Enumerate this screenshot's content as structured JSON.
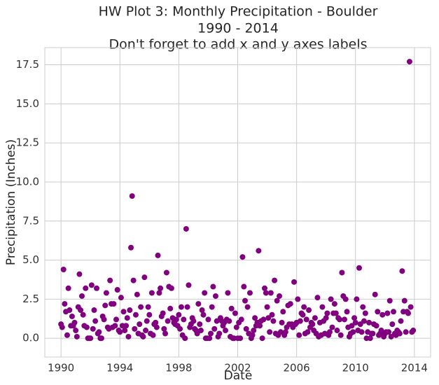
{
  "chart_data": {
    "type": "scatter",
    "title": [
      "HW Plot 3: Monthly Precipitation - Boulder",
      "1990 - 2014",
      "Don't forget to add x and y axes labels"
    ],
    "x_label": "Date",
    "y_label": "Precipitation (Inches)",
    "color": "#800080",
    "grid": true,
    "xlim": [
      1988.9,
      2015.1
    ],
    "ylim": [
      -1.2,
      18.6
    ],
    "xticks": [
      1990,
      1994,
      1998,
      2002,
      2006,
      2010,
      2014
    ],
    "yticks": [
      {
        "value": 0,
        "label": "0.0"
      },
      2.5,
      {
        "value": 5,
        "label": "5.0"
      },
      7.5,
      {
        "value": 10,
        "label": "10.0"
      },
      12.5,
      {
        "value": 15,
        "label": "15.0"
      },
      17.5
    ],
    "x": [
      1990,
      1990.08,
      1990.17,
      1990.25,
      1990.33,
      1990.42,
      1990.5,
      1990.58,
      1990.67,
      1990.75,
      1990.83,
      1990.92,
      1991,
      1991.08,
      1991.17,
      1991.25,
      1991.33,
      1991.42,
      1991.5,
      1991.58,
      1991.67,
      1991.75,
      1991.83,
      1991.92,
      1992,
      1992.08,
      1992.17,
      1992.25,
      1992.33,
      1992.42,
      1992.5,
      1992.58,
      1992.67,
      1992.75,
      1992.83,
      1992.92,
      1993,
      1993.08,
      1993.17,
      1993.25,
      1993.33,
      1993.42,
      1993.5,
      1993.58,
      1993.67,
      1993.75,
      1993.83,
      1993.92,
      1994,
      1994.08,
      1994.17,
      1994.25,
      1994.33,
      1994.42,
      1994.5,
      1994.58,
      1994.67,
      1994.75,
      1994.83,
      1994.92,
      1995,
      1995.08,
      1995.17,
      1995.25,
      1995.33,
      1995.42,
      1995.5,
      1995.58,
      1995.67,
      1995.75,
      1995.83,
      1995.92,
      1996,
      1996.08,
      1996.17,
      1996.25,
      1996.33,
      1996.42,
      1996.5,
      1996.58,
      1996.67,
      1996.75,
      1996.83,
      1996.92,
      1997,
      1997.08,
      1997.17,
      1997.25,
      1997.33,
      1997.42,
      1997.5,
      1997.58,
      1997.67,
      1997.75,
      1997.83,
      1997.92,
      1998,
      1998.08,
      1998.17,
      1998.25,
      1998.33,
      1998.42,
      1998.5,
      1998.58,
      1998.67,
      1998.75,
      1998.83,
      1998.92,
      1999,
      1999.08,
      1999.17,
      1999.25,
      1999.33,
      1999.42,
      1999.5,
      1999.58,
      1999.67,
      1999.75,
      1999.83,
      1999.92,
      2000,
      2000.08,
      2000.17,
      2000.25,
      2000.33,
      2000.42,
      2000.5,
      2000.58,
      2000.67,
      2000.75,
      2000.83,
      2000.92,
      2001,
      2001.08,
      2001.17,
      2001.25,
      2001.33,
      2001.42,
      2001.5,
      2001.58,
      2001.67,
      2001.75,
      2001.83,
      2001.92,
      2002,
      2002.08,
      2002.17,
      2002.25,
      2002.33,
      2002.42,
      2002.5,
      2002.58,
      2002.67,
      2002.75,
      2002.83,
      2002.92,
      2003,
      2003.08,
      2003.17,
      2003.25,
      2003.33,
      2003.42,
      2003.5,
      2003.58,
      2003.67,
      2003.75,
      2003.83,
      2003.92,
      2004,
      2004.08,
      2004.17,
      2004.25,
      2004.33,
      2004.42,
      2004.5,
      2004.58,
      2004.67,
      2004.75,
      2004.83,
      2004.92,
      2005,
      2005.08,
      2005.17,
      2005.25,
      2005.33,
      2005.42,
      2005.5,
      2005.58,
      2005.67,
      2005.75,
      2005.83,
      2005.92,
      2006,
      2006.08,
      2006.17,
      2006.25,
      2006.33,
      2006.42,
      2006.5,
      2006.58,
      2006.67,
      2006.75,
      2006.83,
      2006.92,
      2007,
      2007.08,
      2007.17,
      2007.25,
      2007.33,
      2007.42,
      2007.5,
      2007.58,
      2007.67,
      2007.75,
      2007.83,
      2007.92,
      2008,
      2008.08,
      2008.17,
      2008.25,
      2008.33,
      2008.42,
      2008.5,
      2008.58,
      2008.67,
      2008.75,
      2008.83,
      2008.92,
      2009,
      2009.08,
      2009.17,
      2009.25,
      2009.33,
      2009.42,
      2009.5,
      2009.58,
      2009.67,
      2009.75,
      2009.83,
      2009.92,
      2010,
      2010.08,
      2010.17,
      2010.25,
      2010.33,
      2010.42,
      2010.5,
      2010.58,
      2010.67,
      2010.75,
      2010.83,
      2010.92,
      2011,
      2011.08,
      2011.17,
      2011.25,
      2011.33,
      2011.42,
      2011.5,
      2011.58,
      2011.67,
      2011.75,
      2011.83,
      2011.92,
      2012,
      2012.08,
      2012.17,
      2012.25,
      2012.33,
      2012.42,
      2012.5,
      2012.58,
      2012.67,
      2012.75,
      2012.83,
      2012.92,
      2013,
      2013.08,
      2013.17,
      2013.25,
      2013.33,
      2013.42,
      2013.5,
      2013.58,
      2013.67,
      2013.75,
      2013.83,
      2013.92
    ],
    "values": [
      0.9,
      0.7,
      4.4,
      2.2,
      1.7,
      0.2,
      3.2,
      1.8,
      0.8,
      1.4,
      0.8,
      1.0,
      0.5,
      0.1,
      2.0,
      4.1,
      1.8,
      2.7,
      1.5,
      0.8,
      3.2,
      0.7,
      0.0,
      0.0,
      0.0,
      3.4,
      0.6,
      1.8,
      1.1,
      3.2,
      0.3,
      0.4,
      0.0,
      0.0,
      1.4,
      1.2,
      2.1,
      2.9,
      0.7,
      0.6,
      3.7,
      2.2,
      0.7,
      2.2,
      0.8,
      1.2,
      3.1,
      0.5,
      0.4,
      2.6,
      0.8,
      1.7,
      0.5,
      0.8,
      1.3,
      0.1,
      1.8,
      5.8,
      9.1,
      3.7,
      0.6,
      1.5,
      2.8,
      0.3,
      0.9,
      2.0,
      0.2,
      0.1,
      3.9,
      0.5,
      1.1,
      2.0,
      1.5,
      0.3,
      2.9,
      0.2,
      0.9,
      1.0,
      0.7,
      5.3,
      2.9,
      3.2,
      1.4,
      1.6,
      0.6,
      0.3,
      4.2,
      1.1,
      3.3,
      1.9,
      3.2,
      1.3,
      1.0,
      0.9,
      1.2,
      0.8,
      1.5,
      0.6,
      2.0,
      0.2,
      1.2,
      0.0,
      7.0,
      2.0,
      3.4,
      0.7,
      0.9,
      1.3,
      1.1,
      0.6,
      0.5,
      0.3,
      2.2,
      0.9,
      0.5,
      1.8,
      1.5,
      2.9,
      0.0,
      0.0,
      1.2,
      0.0,
      0.3,
      2.0,
      3.3,
      0.6,
      2.7,
      1.1,
      0.1,
      0.3,
      1.3,
      1.1,
      0.8,
      1.0,
      0.5,
      1.2,
      2.9,
      1.1,
      0.1,
      1.9,
      0.0,
      0.0,
      1.6,
      0.7,
      0.0,
      1.0,
      0.0,
      1.2,
      5.2,
      3.3,
      2.4,
      0.6,
      2.0,
      0.3,
      2.9,
      0.0,
      0.2,
      0.5,
      1.3,
      0.8,
      1.0,
      5.6,
      0.8,
      1.1,
      0.0,
      1.2,
      3.2,
      2.9,
      2.0,
      1.3,
      0.4,
      2.9,
      1.5,
      1.1,
      3.7,
      0.3,
      2.4,
      0.2,
      2.7,
      0.4,
      1.0,
      1.7,
      0.2,
      0.4,
      0.7,
      2.1,
      0.9,
      2.2,
      0.9,
      0.7,
      3.6,
      0.9,
      1.0,
      2.5,
      0.2,
      1.1,
      1.6,
      1.5,
      2.0,
      0.3,
      1.2,
      0.4,
      1.8,
      0.7,
      1.0,
      0.9,
      0.5,
      1.3,
      0.3,
      2.6,
      0.1,
      1.0,
      0.2,
      2.0,
      1.1,
      0.3,
      1.3,
      1.6,
      0.2,
      0.4,
      2.5,
      0.7,
      1.6,
      2.2,
      1.6,
      0.5,
      1.3,
      1.2,
      0.2,
      4.2,
      2.7,
      1.2,
      2.5,
      1.7,
      0.7,
      0.1,
      0.3,
      0.8,
      0.4,
      1.3,
      1.0,
      2.5,
      0.5,
      4.5,
      0.9,
      0.4,
      2.0,
      1.1,
      1.6,
      0.0,
      0.4,
      1.0,
      0.0,
      0.3,
      0.3,
      0.9,
      2.8,
      0.8,
      1.7,
      0.2,
      0.3,
      0.5,
      1.5,
      0.1,
      0.3,
      0.4,
      1.6,
      0.4,
      2.4,
      0.1,
      0.9,
      1.7,
      0.3,
      0.2,
      0.5,
      0.4,
      0.3,
      1.1,
      4.3,
      1.7,
      2.4,
      0.4,
      1.7,
      1.6,
      17.7,
      2.0,
      0.4,
      0.5
    ]
  }
}
